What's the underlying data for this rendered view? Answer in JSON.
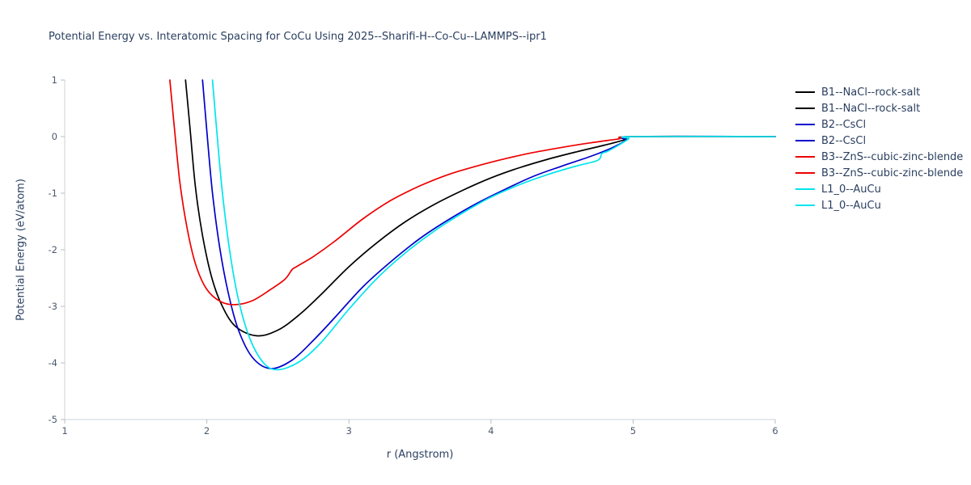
{
  "chart_data": {
    "type": "line",
    "title": "Potential Energy vs. Interatomic Spacing for CoCu Using 2025--Sharifi-H--Co-Cu--LAMMPS--ipr1",
    "xlabel": "r (Angstrom)",
    "ylabel": "Potential Energy (eV/atom)",
    "xlim": [
      1,
      6
    ],
    "ylim": [
      -5,
      1
    ],
    "xticks": [
      1,
      2,
      3,
      4,
      5,
      6
    ],
    "yticks": [
      -5,
      -4,
      -3,
      -2,
      -1,
      0,
      1
    ],
    "grid": false,
    "legend_position": "right-outside",
    "series": [
      {
        "name": "B1--NaCl--rock-salt",
        "color": "#000000",
        "points": [
          [
            1.85,
            1.0
          ],
          [
            1.88,
            0.2
          ],
          [
            1.92,
            -0.9
          ],
          [
            1.97,
            -1.75
          ],
          [
            2.03,
            -2.45
          ],
          [
            2.1,
            -2.95
          ],
          [
            2.2,
            -3.35
          ],
          [
            2.35,
            -3.52
          ],
          [
            2.5,
            -3.42
          ],
          [
            2.65,
            -3.15
          ],
          [
            2.8,
            -2.8
          ],
          [
            3.0,
            -2.3
          ],
          [
            3.2,
            -1.87
          ],
          [
            3.4,
            -1.5
          ],
          [
            3.6,
            -1.2
          ],
          [
            3.8,
            -0.95
          ],
          [
            4.0,
            -0.73
          ],
          [
            4.2,
            -0.55
          ],
          [
            4.4,
            -0.4
          ],
          [
            4.6,
            -0.27
          ],
          [
            4.8,
            -0.15
          ],
          [
            4.95,
            -0.05
          ],
          [
            5.0,
            0.0
          ],
          [
            6.0,
            0.0
          ]
        ]
      },
      {
        "name": "B2--CsCl",
        "color": "#0000cd",
        "points": [
          [
            1.97,
            1.0
          ],
          [
            2.0,
            0.1
          ],
          [
            2.04,
            -1.0
          ],
          [
            2.09,
            -1.95
          ],
          [
            2.15,
            -2.75
          ],
          [
            2.22,
            -3.4
          ],
          [
            2.32,
            -3.9
          ],
          [
            2.45,
            -4.1
          ],
          [
            2.6,
            -3.95
          ],
          [
            2.75,
            -3.6
          ],
          [
            2.9,
            -3.2
          ],
          [
            3.1,
            -2.65
          ],
          [
            3.3,
            -2.2
          ],
          [
            3.5,
            -1.8
          ],
          [
            3.7,
            -1.47
          ],
          [
            3.9,
            -1.18
          ],
          [
            4.1,
            -0.93
          ],
          [
            4.3,
            -0.7
          ],
          [
            4.5,
            -0.52
          ],
          [
            4.7,
            -0.35
          ],
          [
            4.85,
            -0.2
          ],
          [
            4.95,
            -0.07
          ],
          [
            5.0,
            0.0
          ],
          [
            6.0,
            0.0
          ]
        ]
      },
      {
        "name": "B3--ZnS--cubic-zinc-blende",
        "color": "#ee0000",
        "points": [
          [
            1.74,
            1.0
          ],
          [
            1.77,
            0.2
          ],
          [
            1.81,
            -0.8
          ],
          [
            1.86,
            -1.6
          ],
          [
            1.92,
            -2.25
          ],
          [
            2.0,
            -2.7
          ],
          [
            2.1,
            -2.92
          ],
          [
            2.2,
            -2.97
          ],
          [
            2.32,
            -2.9
          ],
          [
            2.45,
            -2.7
          ],
          [
            2.55,
            -2.52
          ],
          [
            2.6,
            -2.35
          ],
          [
            2.63,
            -2.3
          ],
          [
            2.75,
            -2.12
          ],
          [
            2.9,
            -1.85
          ],
          [
            3.1,
            -1.45
          ],
          [
            3.3,
            -1.12
          ],
          [
            3.5,
            -0.87
          ],
          [
            3.7,
            -0.67
          ],
          [
            3.9,
            -0.52
          ],
          [
            4.1,
            -0.39
          ],
          [
            4.3,
            -0.28
          ],
          [
            4.5,
            -0.19
          ],
          [
            4.7,
            -0.11
          ],
          [
            4.9,
            -0.04
          ],
          [
            5.0,
            0.0
          ],
          [
            6.0,
            0.0
          ]
        ]
      },
      {
        "name": "L1_0--AuCu",
        "color": "#00e5ee",
        "points": [
          [
            2.04,
            1.0
          ],
          [
            2.07,
            0.1
          ],
          [
            2.11,
            -1.0
          ],
          [
            2.16,
            -2.0
          ],
          [
            2.22,
            -2.85
          ],
          [
            2.3,
            -3.55
          ],
          [
            2.4,
            -4.0
          ],
          [
            2.5,
            -4.12
          ],
          [
            2.65,
            -3.98
          ],
          [
            2.8,
            -3.65
          ],
          [
            3.0,
            -3.05
          ],
          [
            3.2,
            -2.5
          ],
          [
            3.4,
            -2.05
          ],
          [
            3.6,
            -1.67
          ],
          [
            3.8,
            -1.35
          ],
          [
            4.0,
            -1.07
          ],
          [
            4.2,
            -0.85
          ],
          [
            4.4,
            -0.67
          ],
          [
            4.6,
            -0.52
          ],
          [
            4.75,
            -0.42
          ],
          [
            4.78,
            -0.3
          ],
          [
            4.82,
            -0.26
          ],
          [
            4.9,
            -0.15
          ],
          [
            4.97,
            -0.04
          ],
          [
            5.0,
            0.0
          ],
          [
            6.0,
            0.0
          ]
        ]
      }
    ],
    "legend": [
      {
        "label": "B1--NaCl--rock-salt",
        "color": "#000000"
      },
      {
        "label": "B1--NaCl--rock-salt",
        "color": "#000000"
      },
      {
        "label": "B2--CsCl",
        "color": "#0000cd"
      },
      {
        "label": "B2--CsCl",
        "color": "#0000cd"
      },
      {
        "label": "B3--ZnS--cubic-zinc-blende",
        "color": "#ee0000"
      },
      {
        "label": "B3--ZnS--cubic-zinc-blende",
        "color": "#ee0000"
      },
      {
        "label": "L1_0--AuCu",
        "color": "#00e5ee"
      },
      {
        "label": "L1_0--AuCu",
        "color": "#00e5ee"
      }
    ],
    "style": {
      "axis_color": "#cdd3d9",
      "tick_color": "#b7bec6",
      "tick_label_color": "#4c5a6e",
      "text_color": "#2a3f5f"
    }
  }
}
